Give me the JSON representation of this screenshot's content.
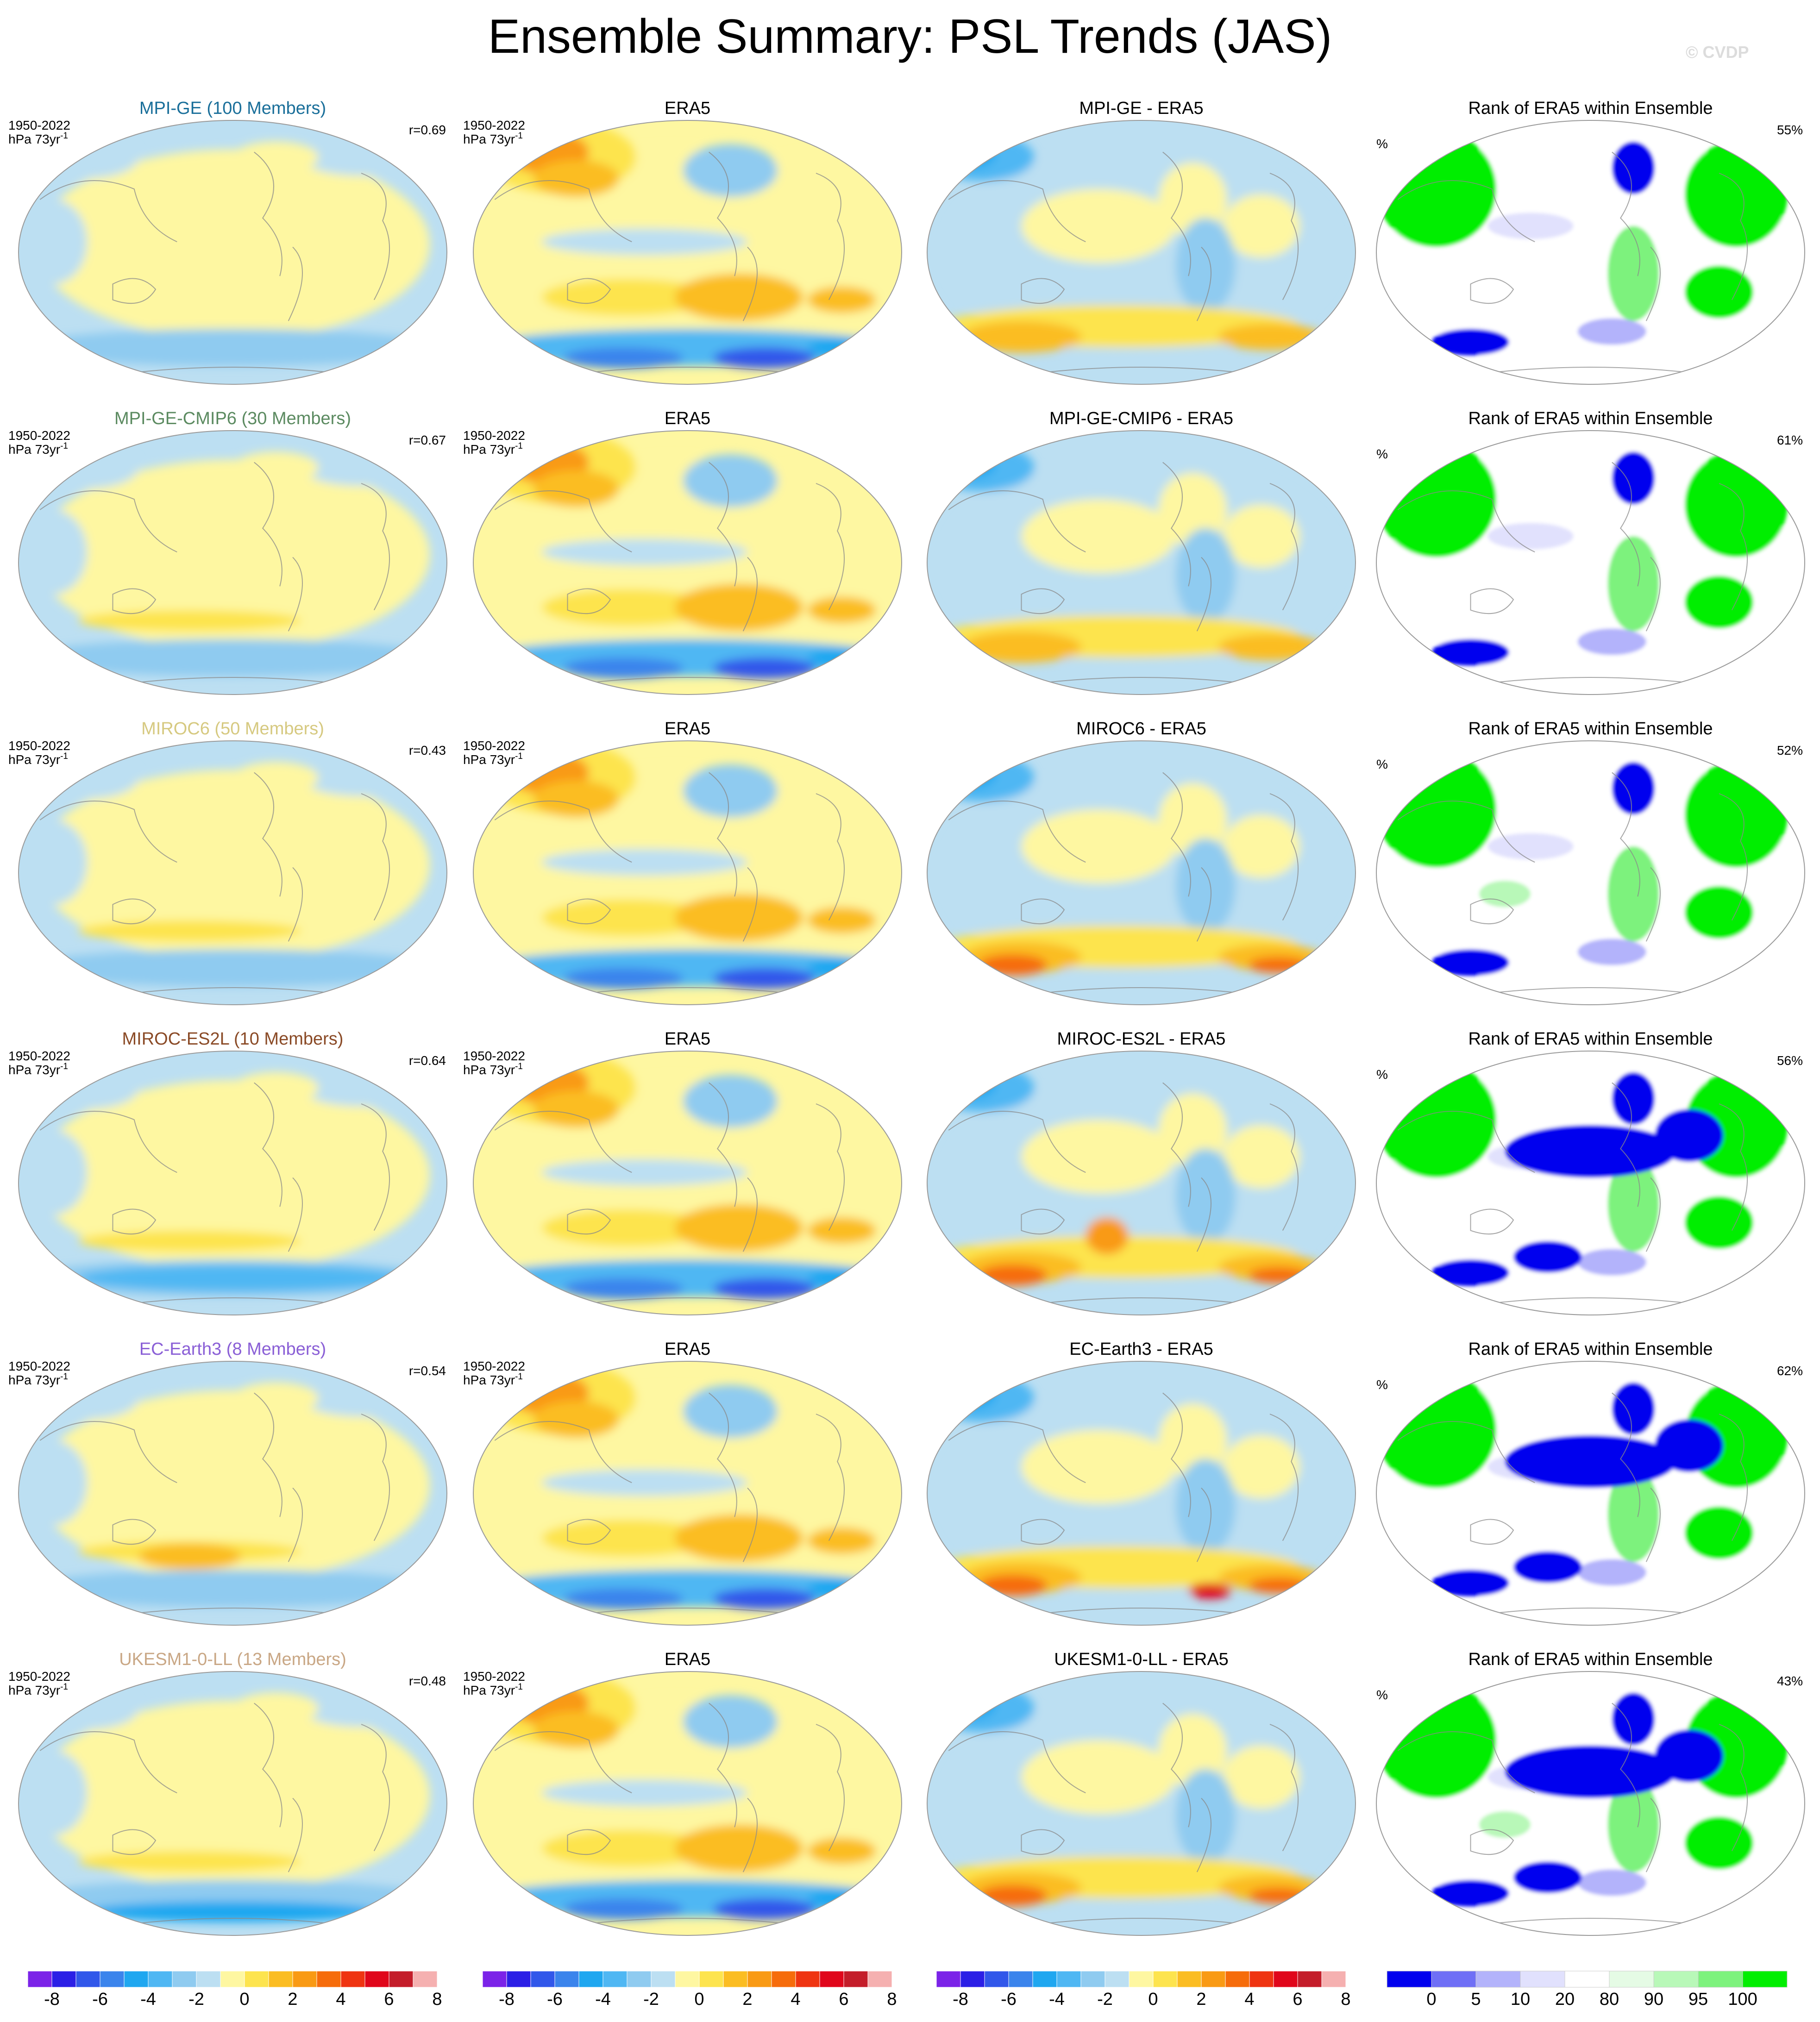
{
  "title": "Ensemble Summary: PSL Trends (JAS)",
  "watermark": "© CVDP",
  "corner_labels": {
    "period": "1950-2022",
    "units_base": "hPa 73yr",
    "units_exp": "-1",
    "percent_unit": "%"
  },
  "colors": {
    "diverging": [
      "#7b23e8",
      "#2b1fe6",
      "#3157ea",
      "#3b84ec",
      "#1fa7f0",
      "#4fb7f3",
      "#8fcbf0",
      "#bcdff2",
      "#fef7a1",
      "#fde44e",
      "#fbbd22",
      "#f99a14",
      "#f66c0b",
      "#ef3411",
      "#e0061b",
      "#c41d2a",
      "#f5b0b0"
    ],
    "rank": [
      "#0000ee",
      "#6f6ff6",
      "#b3b3fb",
      "#e1e1fd",
      "#ffffff",
      "#e5fbe5",
      "#b8f8b8",
      "#7df27d",
      "#00ee00"
    ],
    "title_colors": [
      "#1a6f9a",
      "#5b8a60",
      "#d6c980",
      "#8a4a26",
      "#8a5fd6",
      "#c9a785"
    ]
  },
  "rows": [
    {
      "model_title": "MPI-GE (100 Members)",
      "r": "r=0.69",
      "diff_title": "MPI-GE - ERA5",
      "rank_title": "Rank of ERA5 within Ensemble",
      "rank_pct": "55%"
    },
    {
      "model_title": "MPI-GE-CMIP6 (30 Members)",
      "r": "r=0.67",
      "diff_title": "MPI-GE-CMIP6 - ERA5",
      "rank_title": "Rank of ERA5 within Ensemble",
      "rank_pct": "61%"
    },
    {
      "model_title": "MIROC6 (50 Members)",
      "r": "r=0.43",
      "diff_title": "MIROC6 - ERA5",
      "rank_title": "Rank of ERA5 within Ensemble",
      "rank_pct": "52%"
    },
    {
      "model_title": "MIROC-ES2L (10 Members)",
      "r": "r=0.64",
      "diff_title": "MIROC-ES2L - ERA5",
      "rank_title": "Rank of ERA5 within Ensemble",
      "rank_pct": "56%"
    },
    {
      "model_title": "EC-Earth3 (8 Members)",
      "r": "r=0.54",
      "diff_title": "EC-Earth3 - ERA5",
      "rank_title": "Rank of ERA5 within Ensemble",
      "rank_pct": "62%"
    },
    {
      "model_title": "UKESM1-0-LL (13 Members)",
      "r": "r=0.48",
      "diff_title": "UKESM1-0-LL - ERA5",
      "rank_title": "Rank of ERA5 within Ensemble",
      "rank_pct": "43%"
    }
  ],
  "obs_title": "ERA5",
  "colorbars": {
    "trend_labels": [
      "-8",
      "-6",
      "-4",
      "-2",
      "0",
      "2",
      "4",
      "6",
      "8"
    ],
    "rank_labels": [
      "0",
      "5",
      "10",
      "20",
      "80",
      "90",
      "95",
      "100"
    ]
  },
  "chart_data": {
    "type": "heatmap",
    "title": "Ensemble Summary: PSL Trends (JAS)",
    "columns": [
      "model ensemble-mean trend",
      "ERA5 trend",
      "model minus ERA5",
      "rank of ERA5 within ensemble"
    ],
    "trend_levels": [
      -8,
      -7,
      -6,
      -5,
      -4,
      -3,
      -2,
      -1,
      0,
      1,
      2,
      3,
      4,
      5,
      6,
      7,
      8
    ],
    "rank_levels": [
      0,
      5,
      10,
      20,
      80,
      90,
      95,
      100
    ],
    "pattern_correlation": [
      {
        "model": "MPI-GE",
        "members": 100,
        "r": 0.69,
        "rank_pct": 55
      },
      {
        "model": "MPI-GE-CMIP6",
        "members": 30,
        "r": 0.67,
        "rank_pct": 61
      },
      {
        "model": "MIROC6",
        "members": 50,
        "r": 0.43,
        "rank_pct": 52
      },
      {
        "model": "MIROC-ES2L",
        "members": 10,
        "r": 0.64,
        "rank_pct": 56
      },
      {
        "model": "EC-Earth3",
        "members": 8,
        "r": 0.54,
        "rank_pct": 62
      },
      {
        "model": "UKESM1-0-LL",
        "members": 13,
        "r": 0.48,
        "rank_pct": 43
      }
    ]
  }
}
